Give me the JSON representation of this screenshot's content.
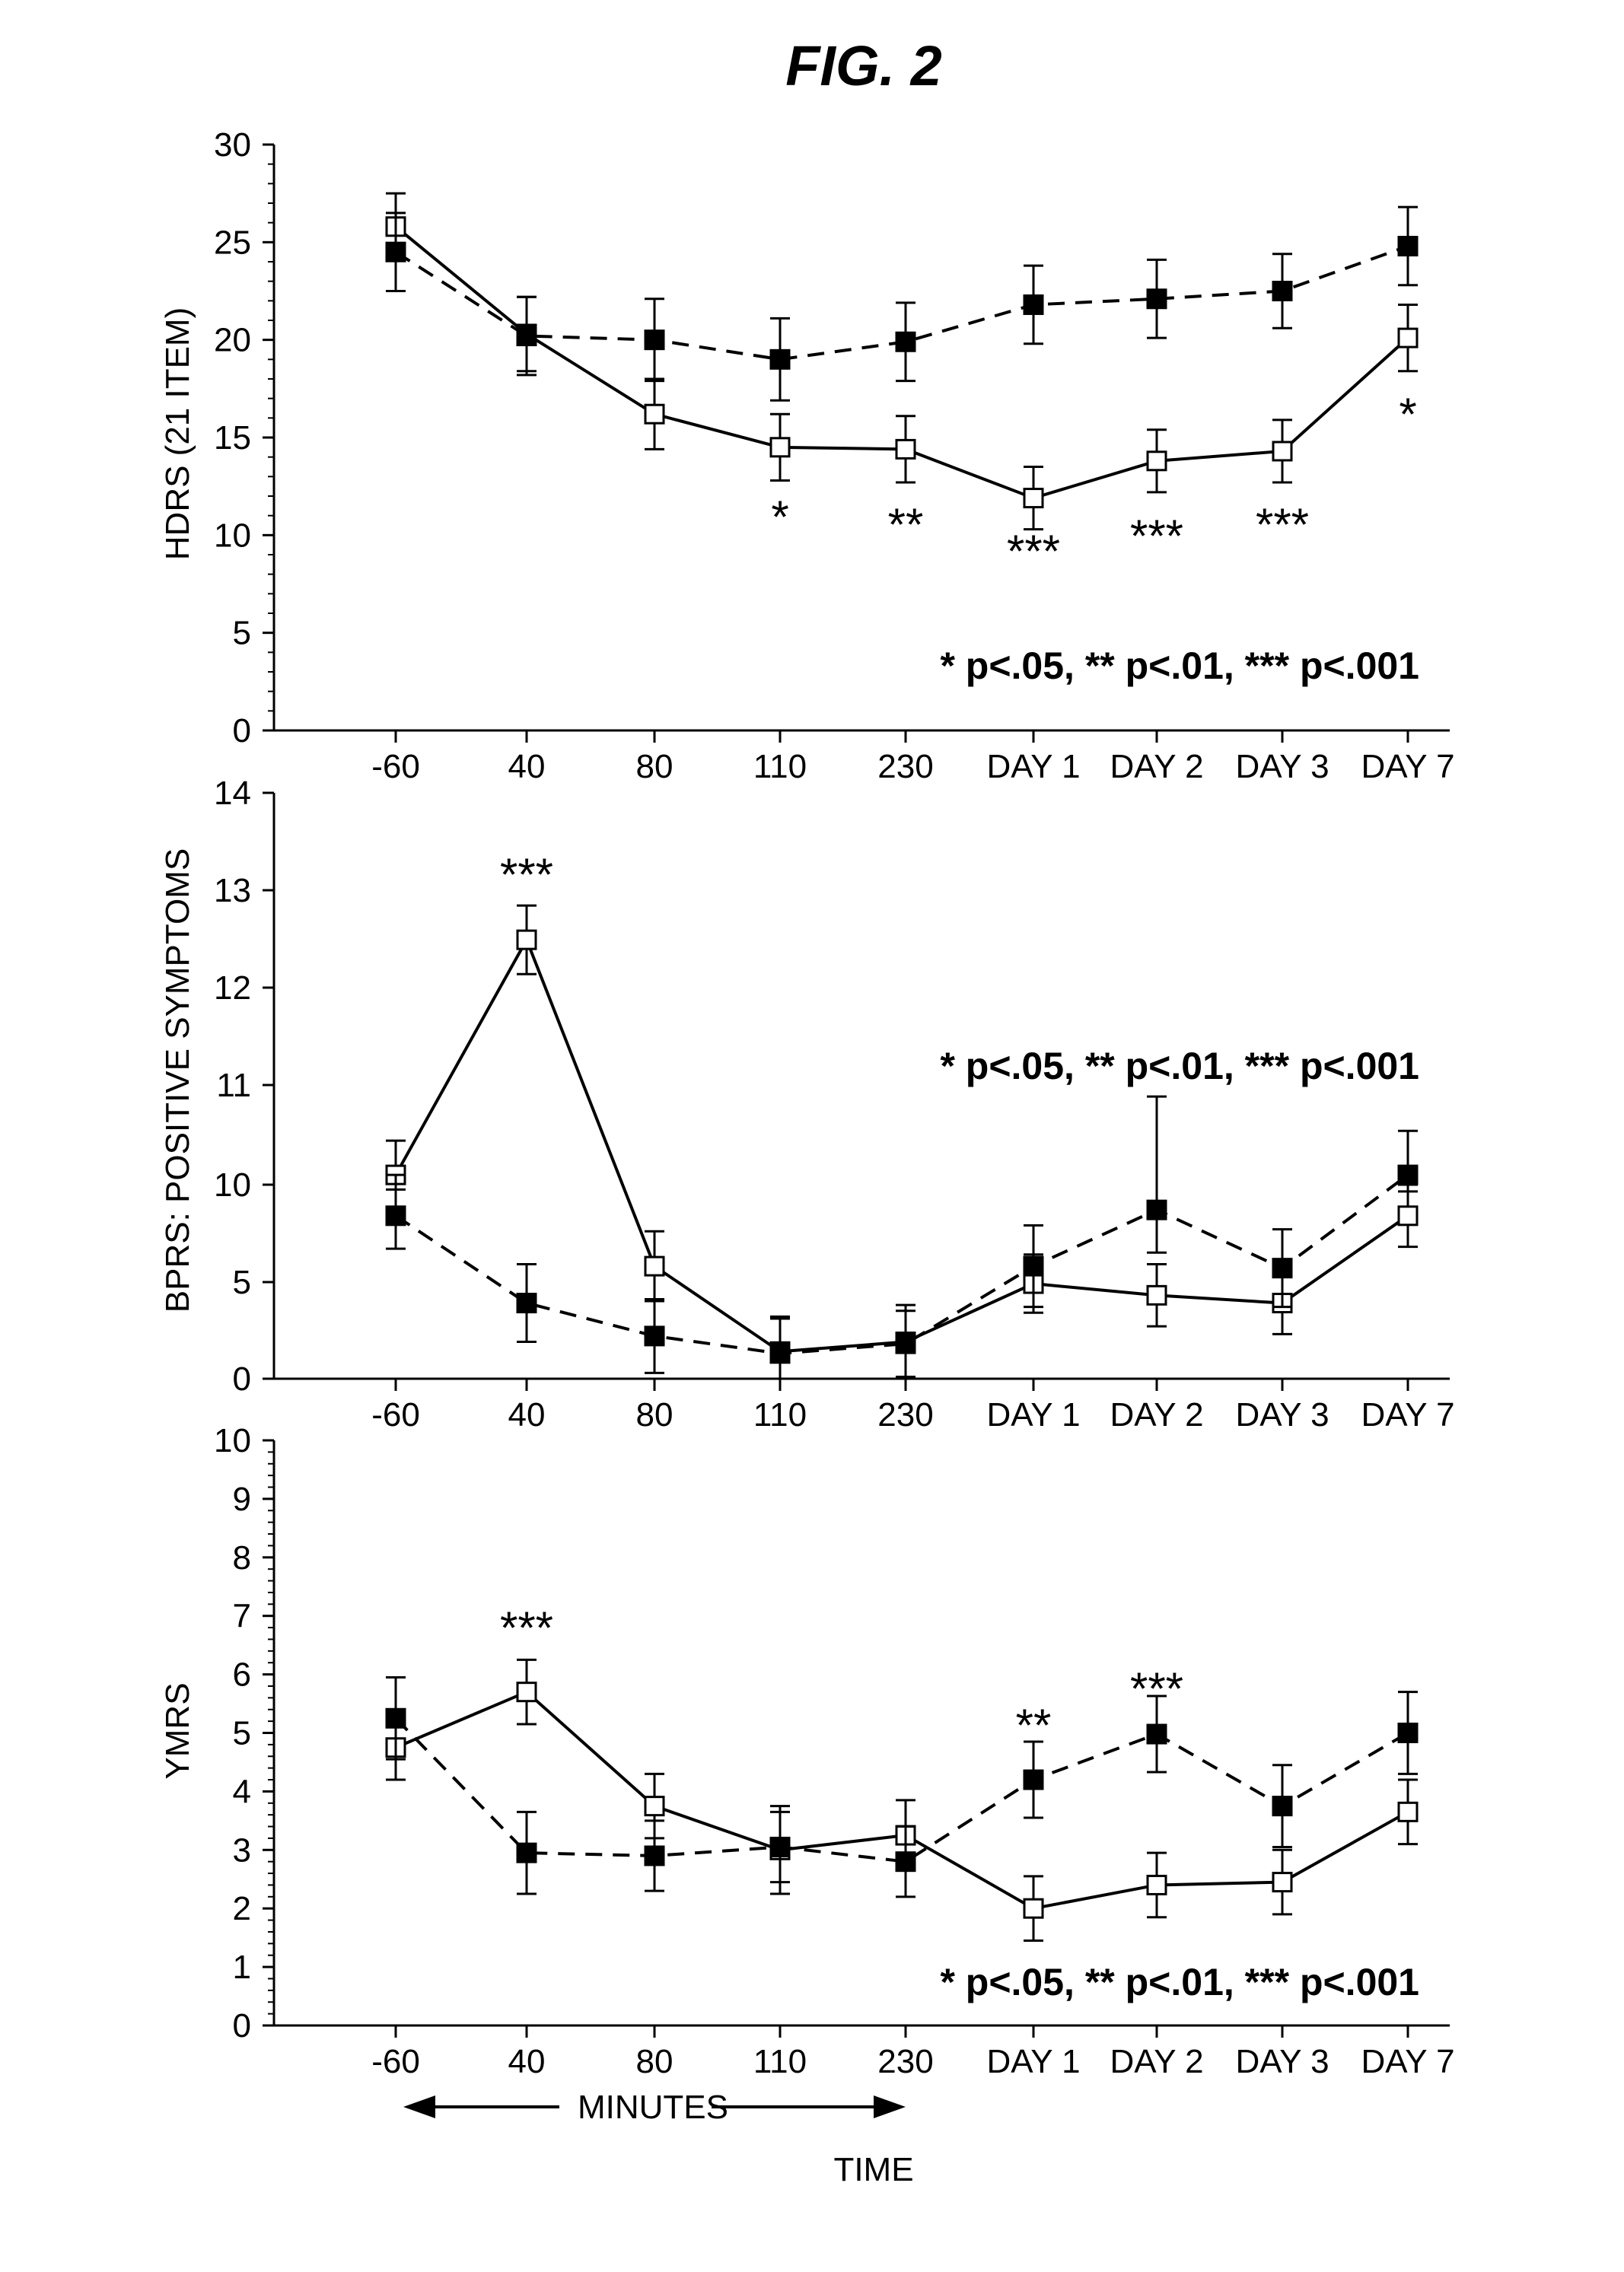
{
  "figure_title": "FIG. 2",
  "x_axis_bottom": {
    "minutes_label": "MINUTES",
    "time_label": "TIME"
  },
  "chart_data": [
    {
      "type": "line",
      "ylabel": "HDRS (21 ITEM)",
      "ylim": [
        0,
        30
      ],
      "yticks": [
        "0",
        "5",
        "10",
        "15",
        "20",
        "25",
        "30"
      ],
      "categories": [
        "-60",
        "40",
        "80",
        "110",
        "230",
        "DAY 1",
        "DAY 2",
        "DAY 3",
        "DAY 7"
      ],
      "series": [
        {
          "marker": "open-square",
          "line": "solid",
          "values": [
            25.8,
            20.3,
            16.2,
            14.5,
            14.4,
            11.9,
            13.8,
            14.3,
            20.1
          ],
          "errors": [
            1.7,
            1.9,
            1.8,
            1.7,
            1.7,
            1.6,
            1.6,
            1.6,
            1.7
          ]
        },
        {
          "marker": "filled-square",
          "line": "dashed",
          "values": [
            24.5,
            20.2,
            20.0,
            19.0,
            19.9,
            21.8,
            22.1,
            22.5,
            24.8
          ],
          "errors": [
            2.0,
            2.0,
            2.1,
            2.1,
            2.0,
            2.0,
            2.0,
            1.9,
            2.0
          ]
        }
      ],
      "significance": [
        {
          "category": "110",
          "mark": "*"
        },
        {
          "category": "230",
          "mark": "**"
        },
        {
          "category": "DAY 1",
          "mark": "***"
        },
        {
          "category": "DAY 2",
          "mark": "***"
        },
        {
          "category": "DAY 3",
          "mark": "***"
        },
        {
          "category": "DAY 7",
          "mark": "*"
        }
      ],
      "legend_text": "* p<.05, ** p<.01, *** p<.001"
    },
    {
      "type": "line",
      "ylabel": "BPRS: POSITIVE SYMPTOMS",
      "ylim": [
        0,
        14
      ],
      "yticks": [
        "0",
        "5",
        "10",
        "11",
        "12",
        "13",
        "14"
      ],
      "y_note": "axis labels printed as shown; lower section compressed",
      "categories": [
        "-60",
        "40",
        "80",
        "110",
        "230",
        "DAY 1",
        "DAY 2",
        "DAY 3",
        "DAY 7"
      ],
      "series": [
        {
          "marker": "open-square",
          "line": "solid",
          "values": [
            10.1,
            12.5,
            5.8,
            1.4,
            1.9,
            4.9,
            4.3,
            3.9,
            8.4
          ],
          "errors": [
            0.35,
            0.35,
            1.8,
            1.8,
            1.9,
            1.5,
            1.6,
            1.6,
            1.6
          ]
        },
        {
          "marker": "filled-square",
          "line": "dashed",
          "values": [
            8.4,
            3.9,
            2.2,
            1.3,
            1.8,
            5.8,
            8.7,
            5.7,
            10.1
          ],
          "errors": [
            1.7,
            2.0,
            1.9,
            1.8,
            1.7,
            2.1,
            2.2,
            2.0,
            0.45
          ]
        }
      ],
      "significance": [
        {
          "category": "40",
          "mark": "***"
        }
      ],
      "legend_text": "* p<.05, ** p<.01, *** p<.001"
    },
    {
      "type": "line",
      "ylabel": "YMRS",
      "ylim": [
        0,
        10
      ],
      "yticks": [
        "0",
        "1",
        "2",
        "3",
        "4",
        "5",
        "6",
        "7",
        "8",
        "9",
        "10"
      ],
      "categories": [
        "-60",
        "40",
        "80",
        "110",
        "230",
        "DAY 1",
        "DAY 2",
        "DAY 3",
        "DAY 7"
      ],
      "series": [
        {
          "marker": "open-square",
          "line": "solid",
          "values": [
            4.75,
            5.7,
            3.75,
            3.0,
            3.25,
            2.0,
            2.4,
            2.45,
            3.65
          ],
          "errors": [
            0.55,
            0.55,
            0.55,
            0.75,
            0.6,
            0.55,
            0.55,
            0.55,
            0.55
          ]
        },
        {
          "marker": "filled-square",
          "line": "dashed",
          "values": [
            5.25,
            2.95,
            2.9,
            3.05,
            2.8,
            4.2,
            4.98,
            3.75,
            5.0
          ],
          "errors": [
            0.7,
            0.7,
            0.6,
            0.6,
            0.6,
            0.65,
            0.65,
            0.7,
            0.7
          ]
        }
      ],
      "significance": [
        {
          "category": "40",
          "mark": "***"
        },
        {
          "category": "DAY 1",
          "mark": "**"
        },
        {
          "category": "DAY 2",
          "mark": "***"
        }
      ],
      "legend_text": "* p<.05, ** p<.01, *** p<.001"
    }
  ]
}
